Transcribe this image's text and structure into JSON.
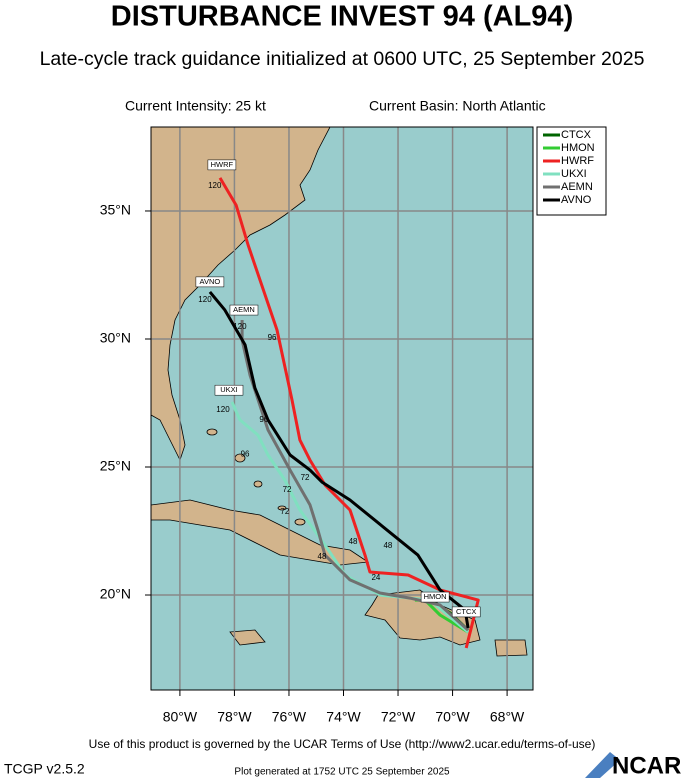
{
  "header": {
    "title": "DISTURBANCE INVEST 94 (AL94)",
    "subtitle": "Late-cycle track guidance initialized at 0600 UTC, 25 September 2025",
    "intensity": "Current Intensity: 25 kt",
    "basin": "Current Basin: North Atlantic"
  },
  "map": {
    "type": "track-map",
    "xlim": [
      -81.06,
      -67.05
    ],
    "ylim": [
      16.29,
      38.28
    ],
    "xticks": [
      {
        "value": -80,
        "label": "80°W"
      },
      {
        "value": -78,
        "label": "78°W"
      },
      {
        "value": -76,
        "label": "76°W"
      },
      {
        "value": -74,
        "label": "74°W"
      },
      {
        "value": -72,
        "label": "72°W"
      },
      {
        "value": -70,
        "label": "70°W"
      },
      {
        "value": -68,
        "label": "68°W"
      }
    ],
    "yticks": [
      {
        "value": 20,
        "label": "20°N"
      },
      {
        "value": 25,
        "label": "25°N"
      },
      {
        "value": 30,
        "label": "30°N"
      },
      {
        "value": 35,
        "label": "35°N"
      }
    ],
    "tracks": [
      {
        "name": "CTCX",
        "color": "#006400",
        "lon": [
          -69.43,
          -70.09,
          -70.83
        ],
        "lat": [
          18.63,
          19.3,
          19.8
        ]
      },
      {
        "name": "HMON",
        "color": "#33cc33",
        "lon": [
          -69.43,
          -70.46,
          -71.01,
          -71.38
        ],
        "lat": [
          18.55,
          19.22,
          19.8,
          19.8
        ]
      },
      {
        "name": "HWRF",
        "color": "#ee2222",
        "lon": [
          -69.5,
          -69.06,
          -70.46,
          -71.63,
          -73.03,
          -73.21,
          -73.76,
          -74.68,
          -75.23,
          -75.6,
          -75.89,
          -76.44,
          -77.5,
          -77.94,
          -78.53
        ],
        "lat": [
          17.93,
          19.8,
          20.2,
          20.78,
          20.9,
          21.56,
          23.32,
          24.3,
          25.27,
          26.05,
          27.62,
          30.35,
          33.67,
          35.23,
          36.29
        ]
      },
      {
        "name": "UKXI",
        "color": "#80e0c0",
        "lon": [
          -69.43,
          -70.83,
          -72.66,
          -73.94,
          -74.68,
          -75.6,
          -76.15,
          -76.77,
          -77.14,
          -77.8,
          -78.09
        ],
        "lat": [
          18.55,
          19.8,
          20.0,
          20.78,
          21.95,
          23.32,
          24.49,
          25.47,
          26.25,
          26.84,
          27.54
        ]
      },
      {
        "name": "AEMN",
        "color": "#707070",
        "lon": [
          -69.43,
          -70.46,
          -71.56,
          -72.66,
          -73.76,
          -74.68,
          -74.94,
          -75.23,
          -75.96,
          -76.77,
          -77.43,
          -77.72,
          -77.72
        ],
        "lat": [
          18.63,
          19.61,
          19.88,
          20.08,
          20.59,
          21.56,
          22.54,
          23.52,
          24.88,
          26.45,
          28.59,
          29.96,
          30.74
        ]
      },
      {
        "name": "AVNO",
        "color": "#000000",
        "lon": [
          -69.43,
          -69.54,
          -70.46,
          -71.27,
          -73.76,
          -74.79,
          -75.23,
          -75.96,
          -76.77,
          -77.25,
          -77.61,
          -78.35,
          -78.9
        ],
        "lat": [
          18.71,
          19.41,
          20.2,
          21.56,
          23.71,
          24.41,
          24.88,
          25.47,
          26.84,
          28.09,
          29.77,
          31.13,
          31.84
        ]
      }
    ],
    "track_tags": [
      {
        "text": "HWRF",
        "lon": -78.46,
        "lat": 36.8
      },
      {
        "text": "AVNO",
        "lon": -78.9,
        "lat": 32.23
      },
      {
        "text": "AEMN",
        "lon": -77.65,
        "lat": 31.13
      },
      {
        "text": "UKXI",
        "lon": -78.2,
        "lat": 28.0
      },
      {
        "text": "HMON",
        "lon": -70.64,
        "lat": 19.92
      },
      {
        "text": "CTCX",
        "lon": -69.5,
        "lat": 19.34
      }
    ],
    "hour_labels": [
      {
        "text": "120",
        "lon": -78.72,
        "lat": 35.98
      },
      {
        "text": "120",
        "lon": -79.08,
        "lat": 31.52
      },
      {
        "text": "120",
        "lon": -77.8,
        "lat": 30.47
      },
      {
        "text": "96",
        "lon": -76.62,
        "lat": 30.04
      },
      {
        "text": "120",
        "lon": -78.42,
        "lat": 27.23
      },
      {
        "text": "96",
        "lon": -76.92,
        "lat": 26.84
      },
      {
        "text": "96",
        "lon": -77.61,
        "lat": 25.5
      },
      {
        "text": "72",
        "lon": -76.07,
        "lat": 24.1
      },
      {
        "text": "72",
        "lon": -75.41,
        "lat": 24.57
      },
      {
        "text": "72",
        "lon": -76.15,
        "lat": 23.24
      },
      {
        "text": "48",
        "lon": -74.79,
        "lat": 21.48
      },
      {
        "text": "48",
        "lon": -73.65,
        "lat": 22.07
      },
      {
        "text": "48",
        "lon": -72.37,
        "lat": 21.91
      },
      {
        "text": "24",
        "lon": -72.81,
        "lat": 20.66
      }
    ]
  },
  "footer": {
    "terms": "Use of this product is governed by the UCAR Terms of Use (http://www2.ucar.edu/terms-of-use)",
    "version": "TCGP v2.5.2",
    "generated": "Plot generated at 1752 UTC   25 September 2025",
    "logo": "NCAR"
  }
}
